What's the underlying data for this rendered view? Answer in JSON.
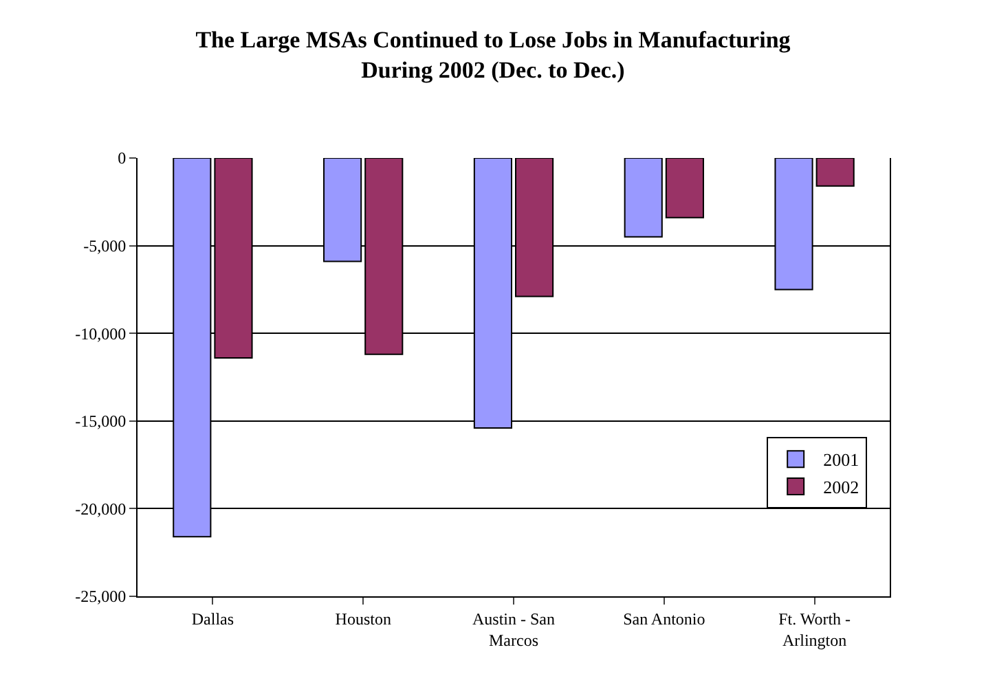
{
  "chart_data": {
    "type": "bar",
    "title": "The Large MSAs Continued to Lose Jobs in Manufacturing\nDuring 2002 (Dec. to Dec.)",
    "categories": [
      "Dallas",
      "Houston",
      "Austin - San\nMarcos",
      "San Antonio",
      "Ft. Worth -\nArlington"
    ],
    "series": [
      {
        "name": "2001",
        "color": "#9999ff",
        "values": [
          -21600,
          -5900,
          -15400,
          -4500,
          -7500
        ]
      },
      {
        "name": "2002",
        "color": "#993366",
        "values": [
          -11400,
          -11200,
          -7900,
          -3400,
          -1600
        ]
      }
    ],
    "ylim": [
      -25000,
      0
    ],
    "yticks": [
      {
        "value": -25000,
        "label": "-25,000"
      },
      {
        "value": -20000,
        "label": "-20,000"
      },
      {
        "value": -15000,
        "label": "-15,000"
      },
      {
        "value": -10000,
        "label": "-10,000"
      },
      {
        "value": -5000,
        "label": "-5,000"
      },
      0
    ],
    "grid": "y",
    "legend": "bottom right"
  }
}
